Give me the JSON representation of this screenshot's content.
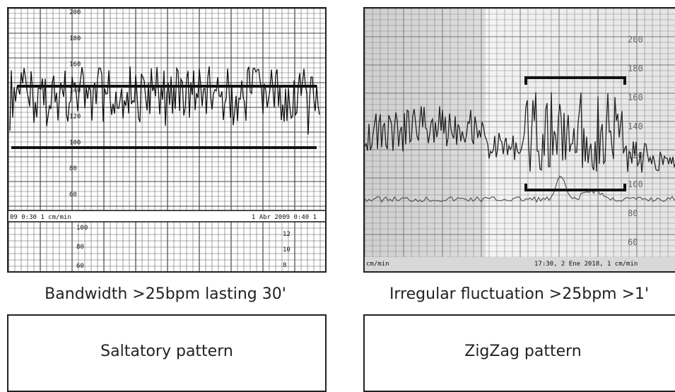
{
  "left": {
    "strip": {
      "footer_left": "09  0:30 1 cm/min",
      "footer_right": "1 Abr 2009  0:40 1",
      "fhr_ticks": [
        "200",
        "180",
        "160",
        "140",
        "120",
        "100",
        "80",
        "60"
      ],
      "lower_ticks_left": [
        "100",
        "80",
        "60"
      ],
      "lower_ticks_right": [
        "12",
        "10",
        "8"
      ]
    },
    "caption": "Bandwidth >25bpm lasting 30'",
    "pattern_label": "Saltatory pattern"
  },
  "right": {
    "strip": {
      "footer_left": "cm/min",
      "footer_right": "17:30, 2 Ene 2018, 1 cm/min",
      "fhr_ticks": [
        "200",
        "180",
        "160",
        "140",
        "120",
        "100",
        "80",
        "60"
      ]
    },
    "caption": "Irregular fluctuation >25bpm >1'",
    "pattern_label": "ZigZag pattern"
  }
}
